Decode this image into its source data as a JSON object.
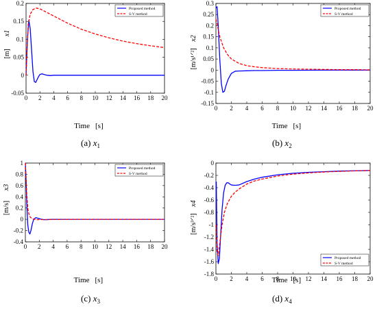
{
  "chart_data": [
    {
      "type": "line",
      "caption_letter": "(a)",
      "caption_var": "x",
      "caption_sub": "1",
      "ylabel_var": "x1",
      "ylabel_unit": "[m]",
      "xlabel": "Time",
      "xunit": "[s]",
      "xlim": [
        0,
        20
      ],
      "ylim": [
        -0.05,
        0.2
      ],
      "xticks": [
        "0",
        "2",
        "4",
        "6",
        "8",
        "10",
        "12",
        "14",
        "16",
        "18",
        "20"
      ],
      "yticks": [
        "-0.05",
        "0",
        "0.05",
        "0.1",
        "0.15",
        "0.2"
      ],
      "ytick_values": [
        -0.05,
        0,
        0.05,
        0.1,
        0.15,
        0.2
      ],
      "legend_position": "top-right",
      "series": [
        {
          "name": "Proposed method",
          "color": "#0000ff",
          "style": "solid",
          "x": [
            0,
            0.2,
            0.4,
            0.6,
            0.8,
            1.0,
            1.2,
            1.4,
            1.6,
            1.8,
            2.0,
            2.3,
            2.6,
            3.0,
            3.5,
            4.0,
            5,
            6,
            8,
            10,
            12,
            14,
            16,
            18,
            20
          ],
          "y": [
            0,
            0.1,
            0.153,
            0.13,
            0.07,
            0.01,
            -0.018,
            -0.02,
            -0.012,
            -0.004,
            0.002,
            0.004,
            0.002,
            0,
            -0.001,
            0,
            0,
            0,
            0,
            0,
            0,
            0,
            0,
            0,
            0
          ]
        },
        {
          "name": "S-V method",
          "color": "#ff0000",
          "style": "dashed",
          "x": [
            0,
            0.3,
            0.6,
            1.0,
            1.5,
            2.0,
            2.5,
            3,
            4,
            5,
            6,
            8,
            10,
            12,
            14,
            16,
            18,
            20
          ],
          "y": [
            0,
            0.14,
            0.17,
            0.183,
            0.187,
            0.185,
            0.18,
            0.175,
            0.165,
            0.155,
            0.145,
            0.128,
            0.115,
            0.104,
            0.095,
            0.088,
            0.082,
            0.077
          ]
        }
      ]
    },
    {
      "type": "line",
      "caption_letter": "(b)",
      "caption_var": "x",
      "caption_sub": "2",
      "ylabel_var": "x2",
      "ylabel_unit": "[m/s¹ᐟ²]",
      "xlabel": "Time",
      "xunit": "[s]",
      "xlim": [
        0,
        20
      ],
      "ylim": [
        -0.15,
        0.3
      ],
      "xticks": [
        "0",
        "2",
        "4",
        "6",
        "8",
        "10",
        "12",
        "14",
        "16",
        "18",
        "20"
      ],
      "yticks": [
        "-0.15",
        "-0.1",
        "-0.05",
        "0",
        "0.05",
        "0.1",
        "0.15",
        "0.2",
        "0.25",
        "0.3"
      ],
      "ytick_values": [
        -0.15,
        -0.1,
        -0.05,
        0,
        0.05,
        0.1,
        0.15,
        0.2,
        0.25,
        0.3
      ],
      "legend_position": "top-right",
      "series": [
        {
          "name": "Proposed method",
          "color": "#0000ff",
          "style": "solid",
          "x": [
            0,
            0.15,
            0.3,
            0.5,
            0.7,
            0.9,
            1.1,
            1.3,
            1.6,
            2.0,
            2.5,
            3.0,
            4,
            5,
            6,
            8,
            10,
            14,
            20
          ],
          "y": [
            0.28,
            0.285,
            0.2,
            0.05,
            -0.06,
            -0.1,
            -0.095,
            -0.07,
            -0.04,
            -0.015,
            -0.005,
            -0.004,
            -0.003,
            -0.002,
            -0.002,
            -0.001,
            -0.001,
            0,
            0
          ]
        },
        {
          "name": "S-V method",
          "color": "#ff0000",
          "style": "dashed",
          "x": [
            0,
            0.2,
            0.5,
            1,
            1.5,
            2,
            3,
            4,
            5,
            6,
            8,
            10,
            12,
            14,
            16,
            18,
            20
          ],
          "y": [
            0.23,
            0.2,
            0.15,
            0.1,
            0.07,
            0.05,
            0.03,
            0.02,
            0.015,
            0.011,
            0.007,
            0.005,
            0.004,
            0.003,
            0.002,
            0.002,
            0.001
          ]
        }
      ]
    },
    {
      "type": "line",
      "caption_letter": "(c)",
      "caption_var": "x",
      "caption_sub": "3",
      "ylabel_var": "x3",
      "ylabel_unit": "[m/s]",
      "xlabel": "Time",
      "xunit": "[s]",
      "xlim": [
        0,
        20
      ],
      "ylim": [
        -0.4,
        1
      ],
      "xticks": [
        "0",
        "2",
        "4",
        "6",
        "8",
        "10",
        "12",
        "14",
        "16",
        "18",
        "20"
      ],
      "yticks": [
        "-0.4",
        "-0.2",
        "0",
        "0.2",
        "0.4",
        "0.6",
        "0.8",
        "1"
      ],
      "ytick_values": [
        -0.4,
        -0.2,
        0,
        0.2,
        0.4,
        0.6,
        0.8,
        1
      ],
      "legend_position": "top-right",
      "series": [
        {
          "name": "Proposed method",
          "color": "#0000ff",
          "style": "solid",
          "x": [
            0,
            0.1,
            0.2,
            0.35,
            0.5,
            0.65,
            0.8,
            1.0,
            1.2,
            1.5,
            1.8,
            2.2,
            2.6,
            3.0,
            3.5,
            4,
            5,
            6,
            8,
            10,
            14,
            20
          ],
          "y": [
            1,
            0.7,
            0.3,
            -0.1,
            -0.23,
            -0.26,
            -0.2,
            -0.08,
            0,
            0.03,
            0.02,
            0.005,
            -0.005,
            -0.005,
            -0.002,
            0,
            0,
            0,
            0,
            0,
            0,
            0
          ]
        },
        {
          "name": "S-V method",
          "color": "#ff0000",
          "style": "dashed",
          "x": [
            0,
            0.1,
            0.2,
            0.35,
            0.5,
            0.7,
            1.0,
            1.5,
            2,
            3,
            4,
            5,
            6,
            8,
            10,
            14,
            20
          ],
          "y": [
            1,
            0.75,
            0.45,
            0.2,
            0.1,
            0.04,
            0.01,
            -0.005,
            -0.005,
            -0.004,
            -0.003,
            -0.002,
            -0.001,
            0,
            0,
            0,
            0
          ]
        }
      ]
    },
    {
      "type": "line",
      "caption_letter": "(d)",
      "caption_var": "x",
      "caption_sub": "4",
      "ylabel_var": "x4",
      "ylabel_unit": "[m/s³ᐟ²]",
      "xlabel": "Time",
      "xunit": "[s]",
      "xlim": [
        0,
        20
      ],
      "ylim": [
        -1.8,
        0
      ],
      "xticks": [
        "0",
        "2",
        "4",
        "6",
        "8",
        "10",
        "12",
        "14",
        "16",
        "18",
        "20"
      ],
      "yticks": [
        "-1.8",
        "-1.6",
        "-1.4",
        "-1.2",
        "-1",
        "-0.8",
        "-0.6",
        "-0.4",
        "-0.2",
        "0"
      ],
      "ytick_values": [
        -1.8,
        -1.6,
        -1.4,
        -1.2,
        -1,
        -0.8,
        -0.6,
        -0.4,
        -0.2,
        0
      ],
      "legend_position": "bottom-right",
      "series": [
        {
          "name": "Proposed method",
          "color": "#0000ff",
          "style": "solid",
          "x": [
            0.05,
            0.15,
            0.3,
            0.45,
            0.6,
            0.8,
            1.0,
            1.2,
            1.4,
            1.6,
            1.8,
            2.0,
            2.3,
            2.6,
            3,
            4,
            5,
            6,
            8,
            10,
            12,
            14,
            16,
            18,
            20
          ],
          "y": [
            -0.3,
            -1.3,
            -1.63,
            -1.55,
            -1.2,
            -0.75,
            -0.48,
            -0.36,
            -0.32,
            -0.32,
            -0.34,
            -0.355,
            -0.36,
            -0.36,
            -0.355,
            -0.3,
            -0.26,
            -0.23,
            -0.19,
            -0.165,
            -0.15,
            -0.14,
            -0.13,
            -0.125,
            -0.12
          ]
        },
        {
          "name": "S-V method",
          "color": "#ff0000",
          "style": "dashed",
          "x": [
            0.05,
            0.15,
            0.3,
            0.5,
            0.8,
            1.1,
            1.5,
            2,
            2.5,
            3,
            4,
            5,
            6,
            8,
            10,
            12,
            14,
            16,
            18,
            20
          ],
          "y": [
            -1.0,
            -1.45,
            -1.5,
            -1.3,
            -1.0,
            -0.8,
            -0.65,
            -0.54,
            -0.47,
            -0.42,
            -0.34,
            -0.29,
            -0.26,
            -0.21,
            -0.18,
            -0.16,
            -0.145,
            -0.135,
            -0.127,
            -0.12
          ]
        }
      ]
    }
  ]
}
